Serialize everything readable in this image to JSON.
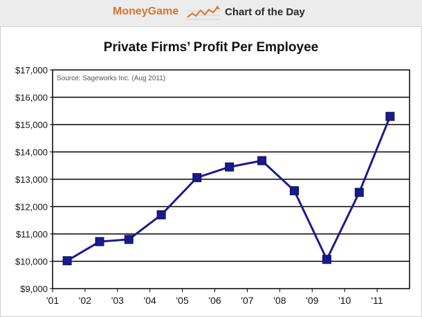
{
  "header": {
    "brand": "MoneyGame",
    "label": "Chart of the Day",
    "icon": "trend-line-icon",
    "brand_color": "#e0712b"
  },
  "chart_data": {
    "type": "line",
    "title": "Private Firms’ Profit Per Employee",
    "source_note": "Source: Sageworks Inc. (Aug 2011)",
    "xlabel": "",
    "ylabel": "",
    "x_ticks": [
      "'01",
      "'02",
      "'03",
      "'04",
      "'05",
      "'06",
      "'07",
      "'08",
      "'09",
      "'10",
      "'11"
    ],
    "y_ticks": [
      "$9,000",
      "$10,000",
      "$11,000",
      "$12,000",
      "$13,000",
      "$14,000",
      "$15,000",
      "$16,000",
      "$17,000"
    ],
    "ylim": [
      9000,
      17000
    ],
    "grid": true,
    "series": [
      {
        "color": "#1a1a8c",
        "x": [
          2001.45,
          2002.45,
          2003.35,
          2004.35,
          2005.45,
          2006.45,
          2007.45,
          2008.45,
          2009.45,
          2010.45,
          2011.4
        ],
        "values": [
          10020,
          10720,
          10800,
          11700,
          13060,
          13450,
          13680,
          12580,
          10070,
          12520,
          15300
        ]
      }
    ]
  }
}
